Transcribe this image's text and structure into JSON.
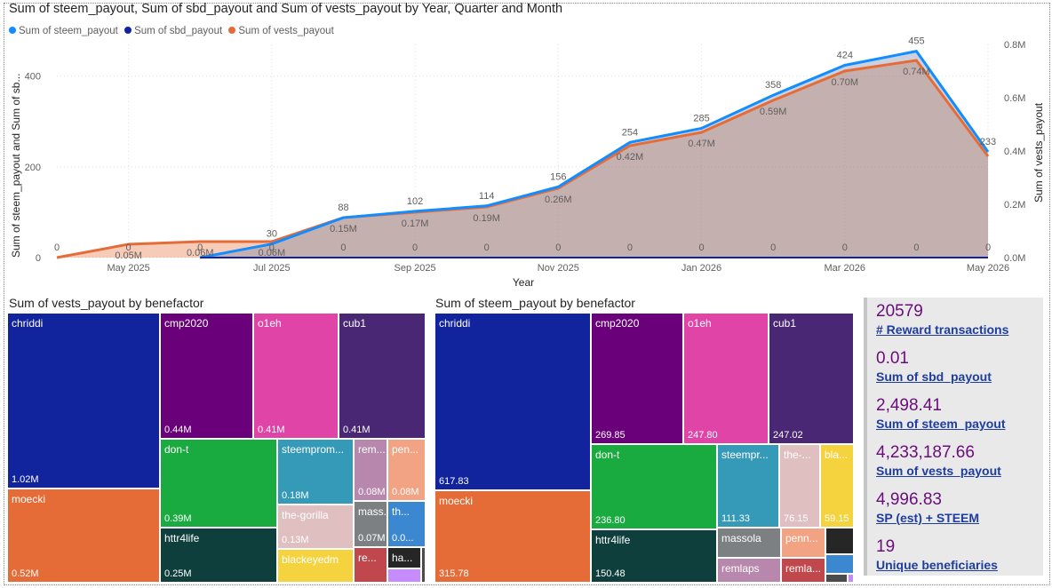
{
  "main_chart": {
    "title": "Sum of steem_payout, Sum of sbd_payout and Sum of vests_payout by Year, Quarter and Month",
    "chart_data": {
      "type": "line",
      "x_axis_label": "Year",
      "y_axis_left_label": "Sum of steem_payout and Sum of sb...",
      "y_axis_right_label": "Sum of vests_payout",
      "x_ticks": [
        "May 2025",
        "Jul 2025",
        "Sep 2025",
        "Nov 2025",
        "Jan 2026",
        "Mar 2026",
        "May 2026"
      ],
      "y_left_ticks": [
        "0",
        "200",
        "400"
      ],
      "y_right_ticks": [
        "0.0M",
        "0.2M",
        "0.4M",
        "0.6M",
        "0.8M"
      ],
      "y_left_range": [
        0,
        470
      ],
      "y_right_range": [
        0,
        0.8
      ],
      "x": [
        "2025-04",
        "2025-05",
        "2025-06",
        "2025-07",
        "2025-08",
        "2025-09",
        "2025-10",
        "2025-11",
        "2025-12",
        "2026-01",
        "2026-02",
        "2026-03",
        "2026-04",
        "2026-05"
      ],
      "legend_position": "top-left",
      "series": [
        {
          "name": "Sum of steem_payout",
          "color": "#118dff",
          "axis": "left",
          "values": [
            null,
            null,
            0,
            30,
            88,
            102,
            114,
            156,
            254,
            285,
            358,
            424,
            455,
            233
          ],
          "labels": [
            "",
            "",
            "",
            "30",
            "88",
            "102",
            "114",
            "156",
            "254",
            "285",
            "358",
            "424",
            "455",
            "233"
          ]
        },
        {
          "name": "Sum of sbd_payout",
          "color": "#12239e",
          "axis": "left",
          "values": [
            null,
            null,
            0,
            0,
            0,
            0,
            0,
            0,
            0,
            0,
            0,
            0,
            0,
            0
          ],
          "labels": [
            "0",
            "0",
            "0",
            "0",
            "0",
            "0",
            "0",
            "0",
            "0",
            "0",
            "0",
            "0",
            "0",
            "0"
          ]
        },
        {
          "name": "Sum of vests_payout",
          "color": "#e66c37",
          "axis": "right",
          "values": [
            0,
            0.05,
            0.06,
            0.06,
            0.15,
            0.17,
            0.19,
            0.26,
            0.42,
            0.47,
            0.59,
            0.7,
            0.74,
            0.38
          ],
          "labels": [
            "",
            "0.05M",
            "0.06M",
            "0.06M",
            "0.15M",
            "0.17M",
            "0.19M",
            "0.26M",
            "0.42M",
            "0.47M",
            "0.59M",
            "0.70M",
            "0.74M",
            ""
          ]
        }
      ]
    }
  },
  "treemap_vests": {
    "title": "Sum of vests_payout by benefactor",
    "chart_data": {
      "type": "treemap",
      "tiles": [
        {
          "name": "chriddi",
          "label": "1.02M",
          "color": "#12239e"
        },
        {
          "name": "moecki",
          "label": "0.52M",
          "color": "#e66c37"
        },
        {
          "name": "cmp2020",
          "label": "0.44M",
          "color": "#6b007b"
        },
        {
          "name": "o1eh",
          "label": "0.41M",
          "color": "#e044a7"
        },
        {
          "name": "cub1",
          "label": "0.41M",
          "color": "#4a2775"
        },
        {
          "name": "don-t",
          "label": "0.39M",
          "color": "#1aab40"
        },
        {
          "name": "httr4life",
          "label": "0.25M",
          "color": "#0f3f3c"
        },
        {
          "name": "steemprom...",
          "label": "0.18M",
          "color": "#3599b8"
        },
        {
          "name": "the-gorilla",
          "label": "0.13M",
          "color": "#dfbfbf"
        },
        {
          "name": "blackeyedm",
          "label": "",
          "color": "#f5d33f"
        },
        {
          "name": "rem...",
          "label": "0.08M",
          "color": "#b887ad"
        },
        {
          "name": "pen...",
          "label": "0.08M",
          "color": "#f2a383"
        },
        {
          "name": "mass...",
          "label": "0.07M",
          "color": "#7d8082"
        },
        {
          "name": "th...",
          "label": "0.0...",
          "color": "#3b87d0"
        },
        {
          "name": "re...",
          "label": "",
          "color": "#c0474b"
        },
        {
          "name": "ha...",
          "label": "",
          "color": "#262626"
        },
        {
          "name": "",
          "label": "",
          "color": "#4b4b4b"
        },
        {
          "name": "",
          "label": "",
          "color": "#c58bff"
        }
      ]
    }
  },
  "treemap_steem": {
    "title": "Sum of steem_payout by benefactor",
    "chart_data": {
      "type": "treemap",
      "tiles": [
        {
          "name": "chriddi",
          "label": "617.83",
          "color": "#12239e"
        },
        {
          "name": "moecki",
          "label": "315.78",
          "color": "#e66c37"
        },
        {
          "name": "cmp2020",
          "label": "269.85",
          "color": "#6b007b"
        },
        {
          "name": "o1eh",
          "label": "247.80",
          "color": "#e044a7"
        },
        {
          "name": "cub1",
          "label": "247.02",
          "color": "#4a2775"
        },
        {
          "name": "don-t",
          "label": "236.80",
          "color": "#1aab40"
        },
        {
          "name": "httr4life",
          "label": "150.48",
          "color": "#0f3f3c"
        },
        {
          "name": "steempr...",
          "label": "111.33",
          "color": "#3599b8"
        },
        {
          "name": "the-...",
          "label": "76.15",
          "color": "#dfbfbf"
        },
        {
          "name": "bla...",
          "label": "59.15",
          "color": "#f5d33f"
        },
        {
          "name": "massola",
          "label": "",
          "color": "#7d8082"
        },
        {
          "name": "penn...",
          "label": "",
          "color": "#f2a383"
        },
        {
          "name": "remlaps",
          "label": "",
          "color": "#b887ad"
        },
        {
          "name": "remla...",
          "label": "",
          "color": "#c0474b"
        },
        {
          "name": "",
          "label": "",
          "color": "#262626"
        },
        {
          "name": "",
          "label": "",
          "color": "#3b87d0"
        },
        {
          "name": "",
          "label": "",
          "color": "#4b4b4b"
        },
        {
          "name": "",
          "label": "",
          "color": "#c58bff"
        }
      ]
    }
  },
  "cards": [
    {
      "value": "20579",
      "label": "# Reward transactions"
    },
    {
      "value": "0.01",
      "label": "Sum of sbd_payout"
    },
    {
      "value": "2,498.41",
      "label": "Sum of steem_payout"
    },
    {
      "value": "4,233,187.66",
      "label": "Sum of vests_payout"
    },
    {
      "value": "4,996.83",
      "label": "SP (est) + STEEM"
    },
    {
      "value": "19",
      "label": "Unique beneficiaries"
    }
  ]
}
